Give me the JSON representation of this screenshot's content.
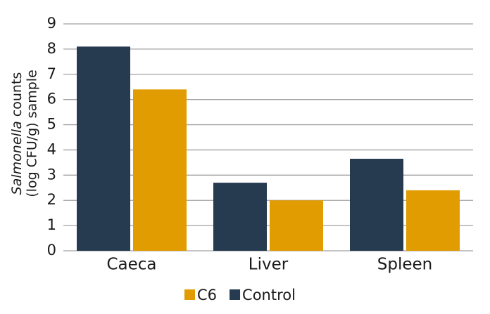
{
  "chart_data": {
    "type": "bar",
    "ylabel": {
      "italic": "Salmonella",
      "rest": "counts",
      "line2": "(log CFU/g) sample"
    },
    "categories": [
      "Caeca",
      "Liver",
      "Spleen"
    ],
    "series": [
      {
        "name": "Control",
        "color": "#263a50",
        "values": [
          8.1,
          2.7,
          3.65
        ]
      },
      {
        "name": "C6",
        "color": "#e09c00",
        "values": [
          6.4,
          2.0,
          2.4
        ]
      }
    ],
    "ylim": [
      0,
      9
    ],
    "yticks": [
      0,
      1,
      2,
      3,
      4,
      5,
      6,
      7,
      8,
      9
    ],
    "grid": true
  }
}
